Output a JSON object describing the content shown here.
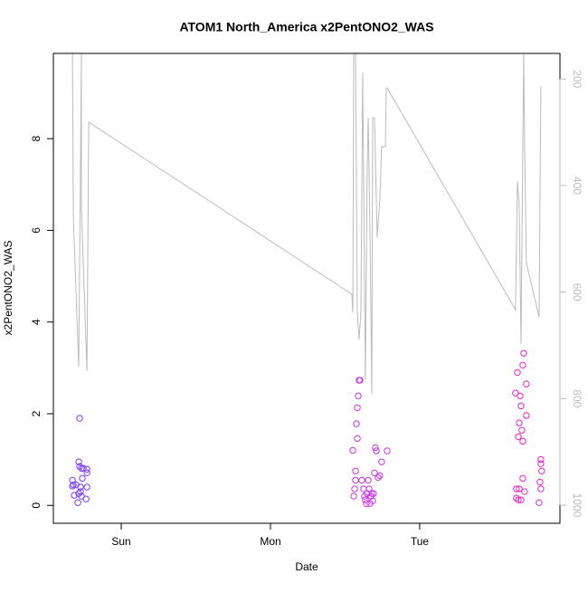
{
  "chart_data": {
    "type": "scatter",
    "title": "ATOM1 North_America x2PentONO2_WAS",
    "xlabel": "Date",
    "ylabel": "x2PentONO2_WAS",
    "xlim": [
      -0.455,
      2.94
    ],
    "xticks": [
      {
        "value": 0,
        "label": "Sun"
      },
      {
        "value": 1,
        "label": "Mon"
      },
      {
        "value": 2,
        "label": "Tue"
      }
    ],
    "ylim": [
      -0.39,
      9.86
    ],
    "yticks": [
      0,
      2,
      4,
      6,
      8
    ],
    "y2lim": [
      1034,
      152
    ],
    "y2ticks": [
      200,
      400,
      600,
      800,
      1000
    ],
    "series": [
      {
        "type": "scatter",
        "color": "#7a3cff",
        "x": [
          -0.327,
          -0.321,
          -0.327,
          -0.315,
          -0.285,
          -0.279,
          -0.279,
          -0.267,
          -0.273,
          -0.285,
          -0.291,
          -0.261,
          -0.255,
          -0.23,
          -0.23,
          -0.23,
          -0.236,
          -0.267,
          -0.303,
          -0.273
        ],
        "values": [
          0.55,
          0.45,
          0.42,
          0.22,
          0.95,
          0.85,
          1.9,
          0.81,
          0.3,
          0.26,
          0.06,
          0.59,
          0.81,
          0.79,
          0.71,
          0.4,
          0.14,
          0.2,
          0.45,
          0.4
        ]
      },
      {
        "type": "scatter",
        "color": "#c832ec",
        "x": [
          1.552,
          1.564,
          1.558,
          1.57,
          1.576,
          1.582,
          1.588,
          1.594,
          1.6,
          1.582,
          1.57,
          1.612,
          1.624,
          1.63,
          1.636,
          1.642,
          1.648,
          1.661,
          1.673,
          1.685,
          1.697,
          1.703,
          1.709,
          1.721,
          1.733,
          1.745,
          1.782,
          1.655,
          1.667,
          1.679,
          1.691
        ],
        "values": [
          1.2,
          0.36,
          0.2,
          0.75,
          1.78,
          2.13,
          2.39,
          2.73,
          2.73,
          1.46,
          0.55,
          0.55,
          0.36,
          0.2,
          0.12,
          0.04,
          0.26,
          0.36,
          0.2,
          0.1,
          0.71,
          1.26,
          1.19,
          0.61,
          0.65,
          0.95,
          1.19,
          0.55,
          0.04,
          0.26,
          0.26
        ]
      },
      {
        "type": "scatter",
        "color": "#ee22c4",
        "x": [
          2.642,
          2.655,
          2.673,
          2.679,
          2.667,
          2.661,
          2.691,
          2.685,
          2.697,
          2.691,
          2.715,
          2.715,
          2.667,
          2.648,
          2.661,
          2.679,
          2.691,
          2.703,
          2.8,
          2.812,
          2.812,
          2.818,
          2.806,
          2.812,
          2.648
        ],
        "values": [
          2.45,
          2.9,
          2.39,
          2.17,
          1.8,
          1.5,
          1.4,
          1.64,
          3.32,
          3.06,
          2.65,
          1.96,
          0.36,
          0.16,
          0.12,
          0.12,
          0.59,
          0.3,
          0.06,
          1.0,
          0.91,
          0.75,
          0.51,
          0.36,
          0.36
        ]
      },
      {
        "type": "line",
        "axis": "y2",
        "color": "#bbbbbb",
        "x": [
          -0.327,
          -0.321,
          -0.285,
          -0.267,
          -0.267,
          -0.23,
          -0.218,
          1.545,
          1.552,
          1.558,
          1.57,
          1.582,
          1.594,
          1.606,
          1.618,
          1.636,
          1.648,
          1.655,
          1.667,
          1.679,
          1.685,
          1.697,
          1.715,
          1.733,
          1.745,
          1.77,
          1.776,
          1.782,
          2.636,
          2.642,
          2.655,
          2.667,
          2.679,
          2.697,
          2.703,
          2.715,
          2.8,
          2.812
        ],
        "values": [
          152,
          460,
          740,
          152,
          443,
          748,
          281,
          604,
          638,
          152,
          152,
          638,
          689,
          638,
          188,
          765,
          375,
          273,
          490,
          791,
          273,
          273,
          497,
          426,
          327,
          327,
          217,
          217,
          630,
          635,
          392,
          434,
          697,
          152,
          324,
          545,
          647,
          214
        ]
      }
    ]
  }
}
